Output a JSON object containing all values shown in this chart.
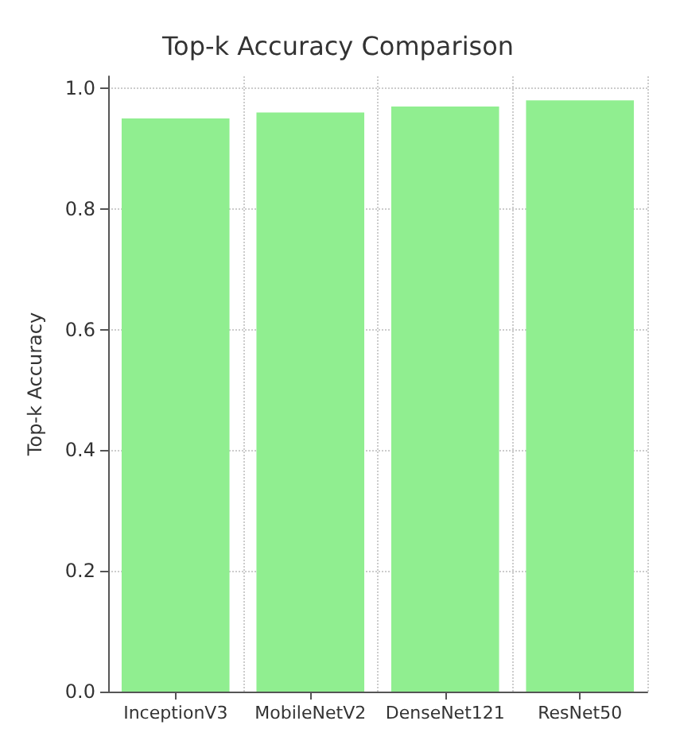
{
  "chart_data": {
    "type": "bar",
    "title": "Top-k Accuracy Comparison",
    "ylabel": "Top-k Accuracy",
    "categories": [
      "InceptionV3",
      "MobileNetV2",
      "DenseNet121",
      "ResNet50"
    ],
    "values": [
      0.95,
      0.96,
      0.97,
      0.98
    ],
    "color": "#90ee90",
    "ylim": [
      0,
      1.02
    ],
    "yticks": [
      {
        "value": 0,
        "label": "0.0"
      },
      0.2,
      0.4,
      0.6,
      0.8,
      {
        "value": 1,
        "label": "1.0"
      }
    ],
    "grid": true
  }
}
